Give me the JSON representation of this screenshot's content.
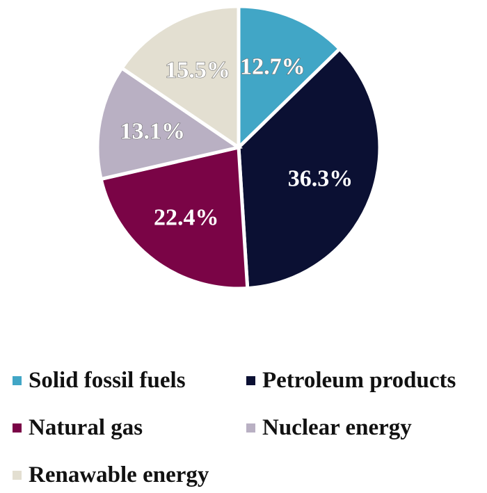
{
  "chart_data": {
    "type": "pie",
    "title": "",
    "slices": [
      {
        "name": "Solid fossil fuels",
        "value": 12.7,
        "label": "12.7%",
        "color": "#41a6c6",
        "label_color": "#ffffff"
      },
      {
        "name": "Petroleum products",
        "value": 36.3,
        "label": "36.3%",
        "color": "#0b1033",
        "label_color": "#ffffff"
      },
      {
        "name": "Natural gas",
        "value": 22.4,
        "label": "22.4%",
        "color": "#7a0446",
        "label_color": "#ffffff"
      },
      {
        "name": "Nuclear energy",
        "value": 13.1,
        "label": "13.1%",
        "color": "#b9b0c3",
        "label_color": "#ffffff"
      },
      {
        "name": "Renawable energy",
        "value": 15.5,
        "label": "15.5%",
        "color": "#e3dfd1",
        "label_color": "#ffffff"
      }
    ],
    "start_angle_deg": 0,
    "direction": "clockwise",
    "slice_separator_color": "#ffffff",
    "legend_position": "bottom",
    "legend": [
      {
        "label": "Solid fossil fuels",
        "color": "#41a6c6"
      },
      {
        "label": "Petroleum products",
        "color": "#0b1033"
      },
      {
        "label": "Natural gas",
        "color": "#7a0446"
      },
      {
        "label": "Nuclear energy",
        "color": "#b9b0c3"
      },
      {
        "label": "Renawable energy",
        "color": "#e3dfd1"
      }
    ]
  }
}
